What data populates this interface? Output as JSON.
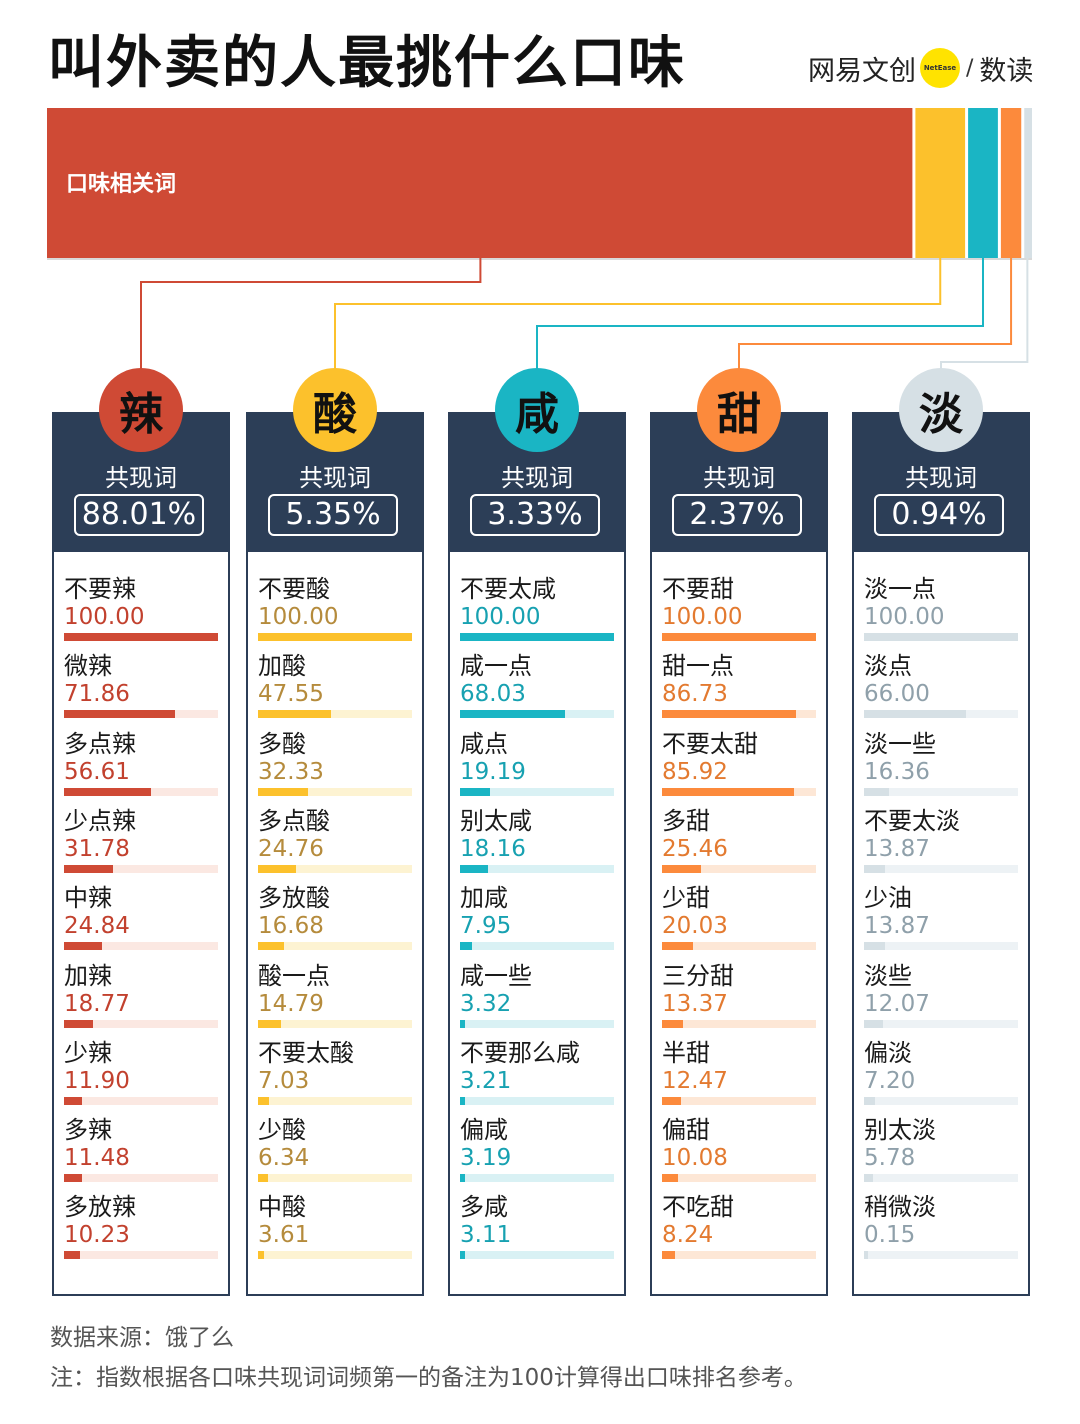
{
  "header": {
    "title": "叫外卖的人最挑什么口味",
    "logo_left": "网易文创",
    "logo_badge": "NetEase",
    "logo_slash": "/",
    "logo_right": "数读"
  },
  "share_bar": {
    "label": "口味相关词"
  },
  "colors": {
    "辣": {
      "main": "#cf4a35",
      "light": "#fbe8e2",
      "value": "#c2412e"
    },
    "酸": {
      "main": "#fcc12c",
      "light": "#fdf3d2",
      "value": "#b58b3c"
    },
    "咸": {
      "main": "#1ab5c4",
      "light": "#d9f1f4",
      "value": "#17a1b1"
    },
    "甜": {
      "main": "#fc8a3c",
      "light": "#fde7d6",
      "value": "#e37a30"
    },
    "淡": {
      "main": "#d6e0e5",
      "light": "#edf2f5",
      "value": "#8fa0aa"
    },
    "header_bg": "#2c3e57"
  },
  "chart_data": {
    "type": "bar",
    "title": "叫外卖的人最挑什么口味",
    "share": {
      "label": "口味相关词",
      "categories": [
        "辣",
        "酸",
        "咸",
        "甜",
        "淡"
      ],
      "values": [
        88.01,
        5.35,
        3.33,
        2.37,
        0.94
      ]
    },
    "columns": [
      {
        "flavor": "辣",
        "caption": "共现词",
        "percent": "88.01%",
        "items": [
          {
            "label": "不要辣",
            "value": 100.0,
            "display": "100.00"
          },
          {
            "label": "微辣",
            "value": 71.86,
            "display": "71.86"
          },
          {
            "label": "多点辣",
            "value": 56.61,
            "display": "56.61"
          },
          {
            "label": "少点辣",
            "value": 31.78,
            "display": "31.78"
          },
          {
            "label": "中辣",
            "value": 24.84,
            "display": "24.84"
          },
          {
            "label": "加辣",
            "value": 18.77,
            "display": "18.77"
          },
          {
            "label": "少辣",
            "value": 11.9,
            "display": "11.90"
          },
          {
            "label": "多辣",
            "value": 11.48,
            "display": "11.48"
          },
          {
            "label": "多放辣",
            "value": 10.23,
            "display": "10.23"
          }
        ]
      },
      {
        "flavor": "酸",
        "caption": "共现词",
        "percent": "5.35%",
        "items": [
          {
            "label": "不要酸",
            "value": 100.0,
            "display": "100.00"
          },
          {
            "label": "加酸",
            "value": 47.55,
            "display": "47.55"
          },
          {
            "label": "多酸",
            "value": 32.33,
            "display": "32.33"
          },
          {
            "label": "多点酸",
            "value": 24.76,
            "display": "24.76"
          },
          {
            "label": "多放酸",
            "value": 16.68,
            "display": "16.68"
          },
          {
            "label": "酸一点",
            "value": 14.79,
            "display": "14.79"
          },
          {
            "label": "不要太酸",
            "value": 7.03,
            "display": "7.03"
          },
          {
            "label": "少酸",
            "value": 6.34,
            "display": "6.34"
          },
          {
            "label": "中酸",
            "value": 3.61,
            "display": "3.61"
          }
        ]
      },
      {
        "flavor": "咸",
        "caption": "共现词",
        "percent": "3.33%",
        "items": [
          {
            "label": "不要太咸",
            "value": 100.0,
            "display": "100.00"
          },
          {
            "label": "咸一点",
            "value": 68.03,
            "display": "68.03"
          },
          {
            "label": "咸点",
            "value": 19.19,
            "display": "19.19"
          },
          {
            "label": "别太咸",
            "value": 18.16,
            "display": "18.16"
          },
          {
            "label": "加咸",
            "value": 7.95,
            "display": "7.95"
          },
          {
            "label": "咸一些",
            "value": 3.32,
            "display": "3.32"
          },
          {
            "label": "不要那么咸",
            "value": 3.21,
            "display": "3.21"
          },
          {
            "label": "偏咸",
            "value": 3.19,
            "display": "3.19"
          },
          {
            "label": "多咸",
            "value": 3.11,
            "display": "3.11"
          }
        ]
      },
      {
        "flavor": "甜",
        "caption": "共现词",
        "percent": "2.37%",
        "items": [
          {
            "label": "不要甜",
            "value": 100.0,
            "display": "100.00"
          },
          {
            "label": "甜一点",
            "value": 86.73,
            "display": "86.73"
          },
          {
            "label": "不要太甜",
            "value": 85.92,
            "display": "85.92"
          },
          {
            "label": "多甜",
            "value": 25.46,
            "display": "25.46"
          },
          {
            "label": "少甜",
            "value": 20.03,
            "display": "20.03"
          },
          {
            "label": "三分甜",
            "value": 13.37,
            "display": "13.37"
          },
          {
            "label": "半甜",
            "value": 12.47,
            "display": "12.47"
          },
          {
            "label": "偏甜",
            "value": 10.08,
            "display": "10.08"
          },
          {
            "label": "不吃甜",
            "value": 8.24,
            "display": "8.24"
          }
        ]
      },
      {
        "flavor": "淡",
        "caption": "共现词",
        "percent": "0.94%",
        "items": [
          {
            "label": "淡一点",
            "value": 100.0,
            "display": "100.00"
          },
          {
            "label": "淡点",
            "value": 66.0,
            "display": "66.00"
          },
          {
            "label": "淡一些",
            "value": 16.36,
            "display": "16.36"
          },
          {
            "label": "不要太淡",
            "value": 13.87,
            "display": "13.87"
          },
          {
            "label": "少油",
            "value": 13.87,
            "display": "13.87"
          },
          {
            "label": "淡些",
            "value": 12.07,
            "display": "12.07"
          },
          {
            "label": "偏淡",
            "value": 7.2,
            "display": "7.20"
          },
          {
            "label": "别太淡",
            "value": 5.78,
            "display": "5.78"
          },
          {
            "label": "稍微淡",
            "value": 0.15,
            "display": "0.15"
          }
        ]
      }
    ],
    "xmax": 100
  },
  "footer": {
    "source": "数据来源：饿了么",
    "note": "注：指数根据各口味共现词词频第一的备注为100计算得出口味排名参考。"
  }
}
